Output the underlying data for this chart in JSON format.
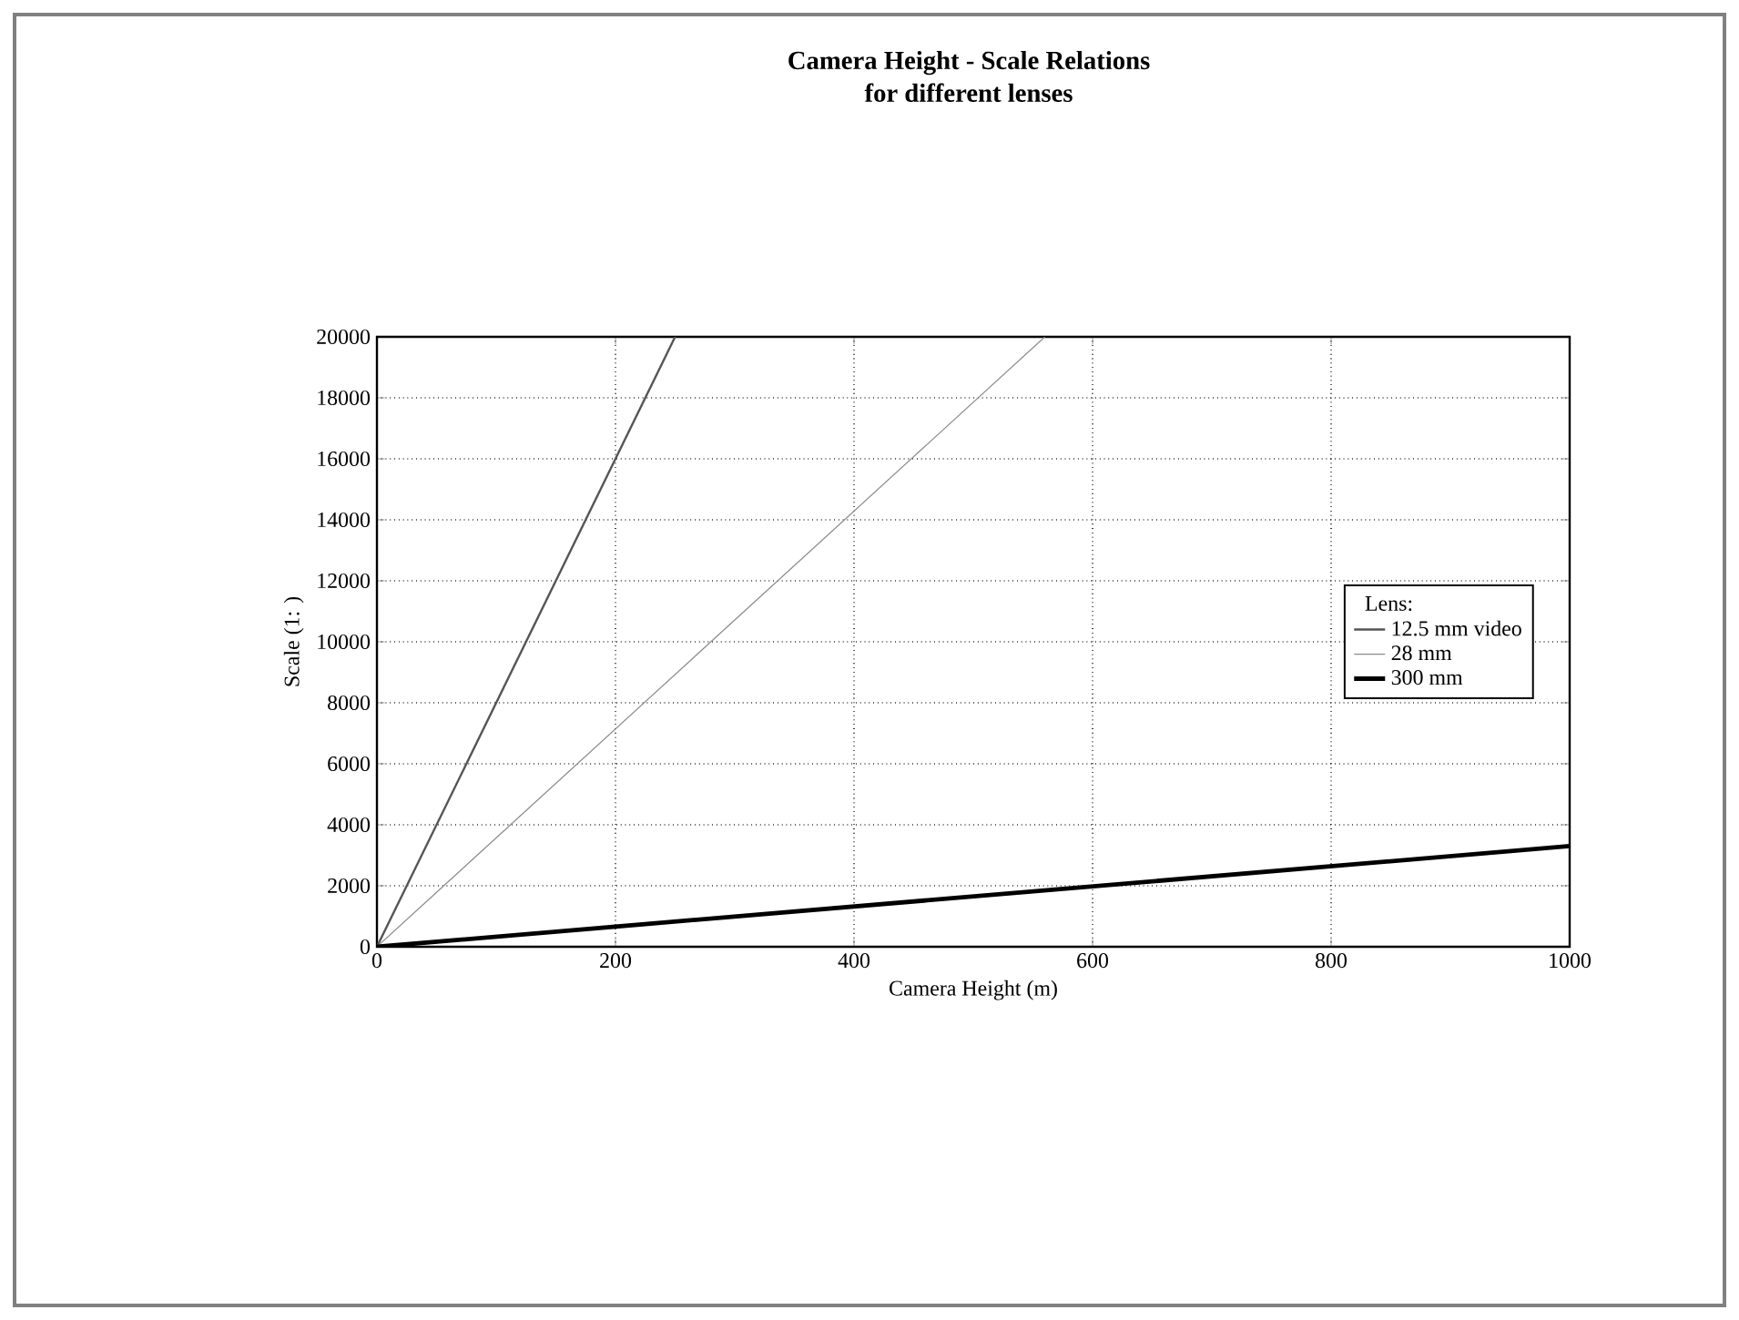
{
  "chart_data": {
    "type": "line",
    "title": "Camera Height - Scale Relations",
    "subtitle": "for different lenses",
    "xlabel": "Camera Height (m)",
    "ylabel": "Scale (1: )",
    "legend_title": "Lens:",
    "series": [
      {
        "name": "12.5 mm video",
        "color": "#555555",
        "x": [
          0,
          250
        ],
        "values": [
          0,
          20000
        ]
      },
      {
        "name": "28 mm",
        "color": "#8a8a8a",
        "x": [
          0,
          560
        ],
        "values": [
          0,
          20000
        ]
      },
      {
        "name": "300 mm",
        "color": "#000000",
        "x": [
          0,
          1000
        ],
        "values": [
          0,
          3300
        ]
      }
    ],
    "xlim": [
      0,
      1000
    ],
    "xticks": [
      0,
      200,
      400,
      600,
      800,
      1000
    ],
    "ylim": [
      0,
      20000
    ],
    "yticks": [
      0,
      2000,
      4000,
      6000,
      8000,
      10000,
      12000,
      14000,
      16000,
      18000,
      20000
    ],
    "grid": true,
    "legend": "right",
    "marker": "none",
    "line_style": "solid"
  }
}
